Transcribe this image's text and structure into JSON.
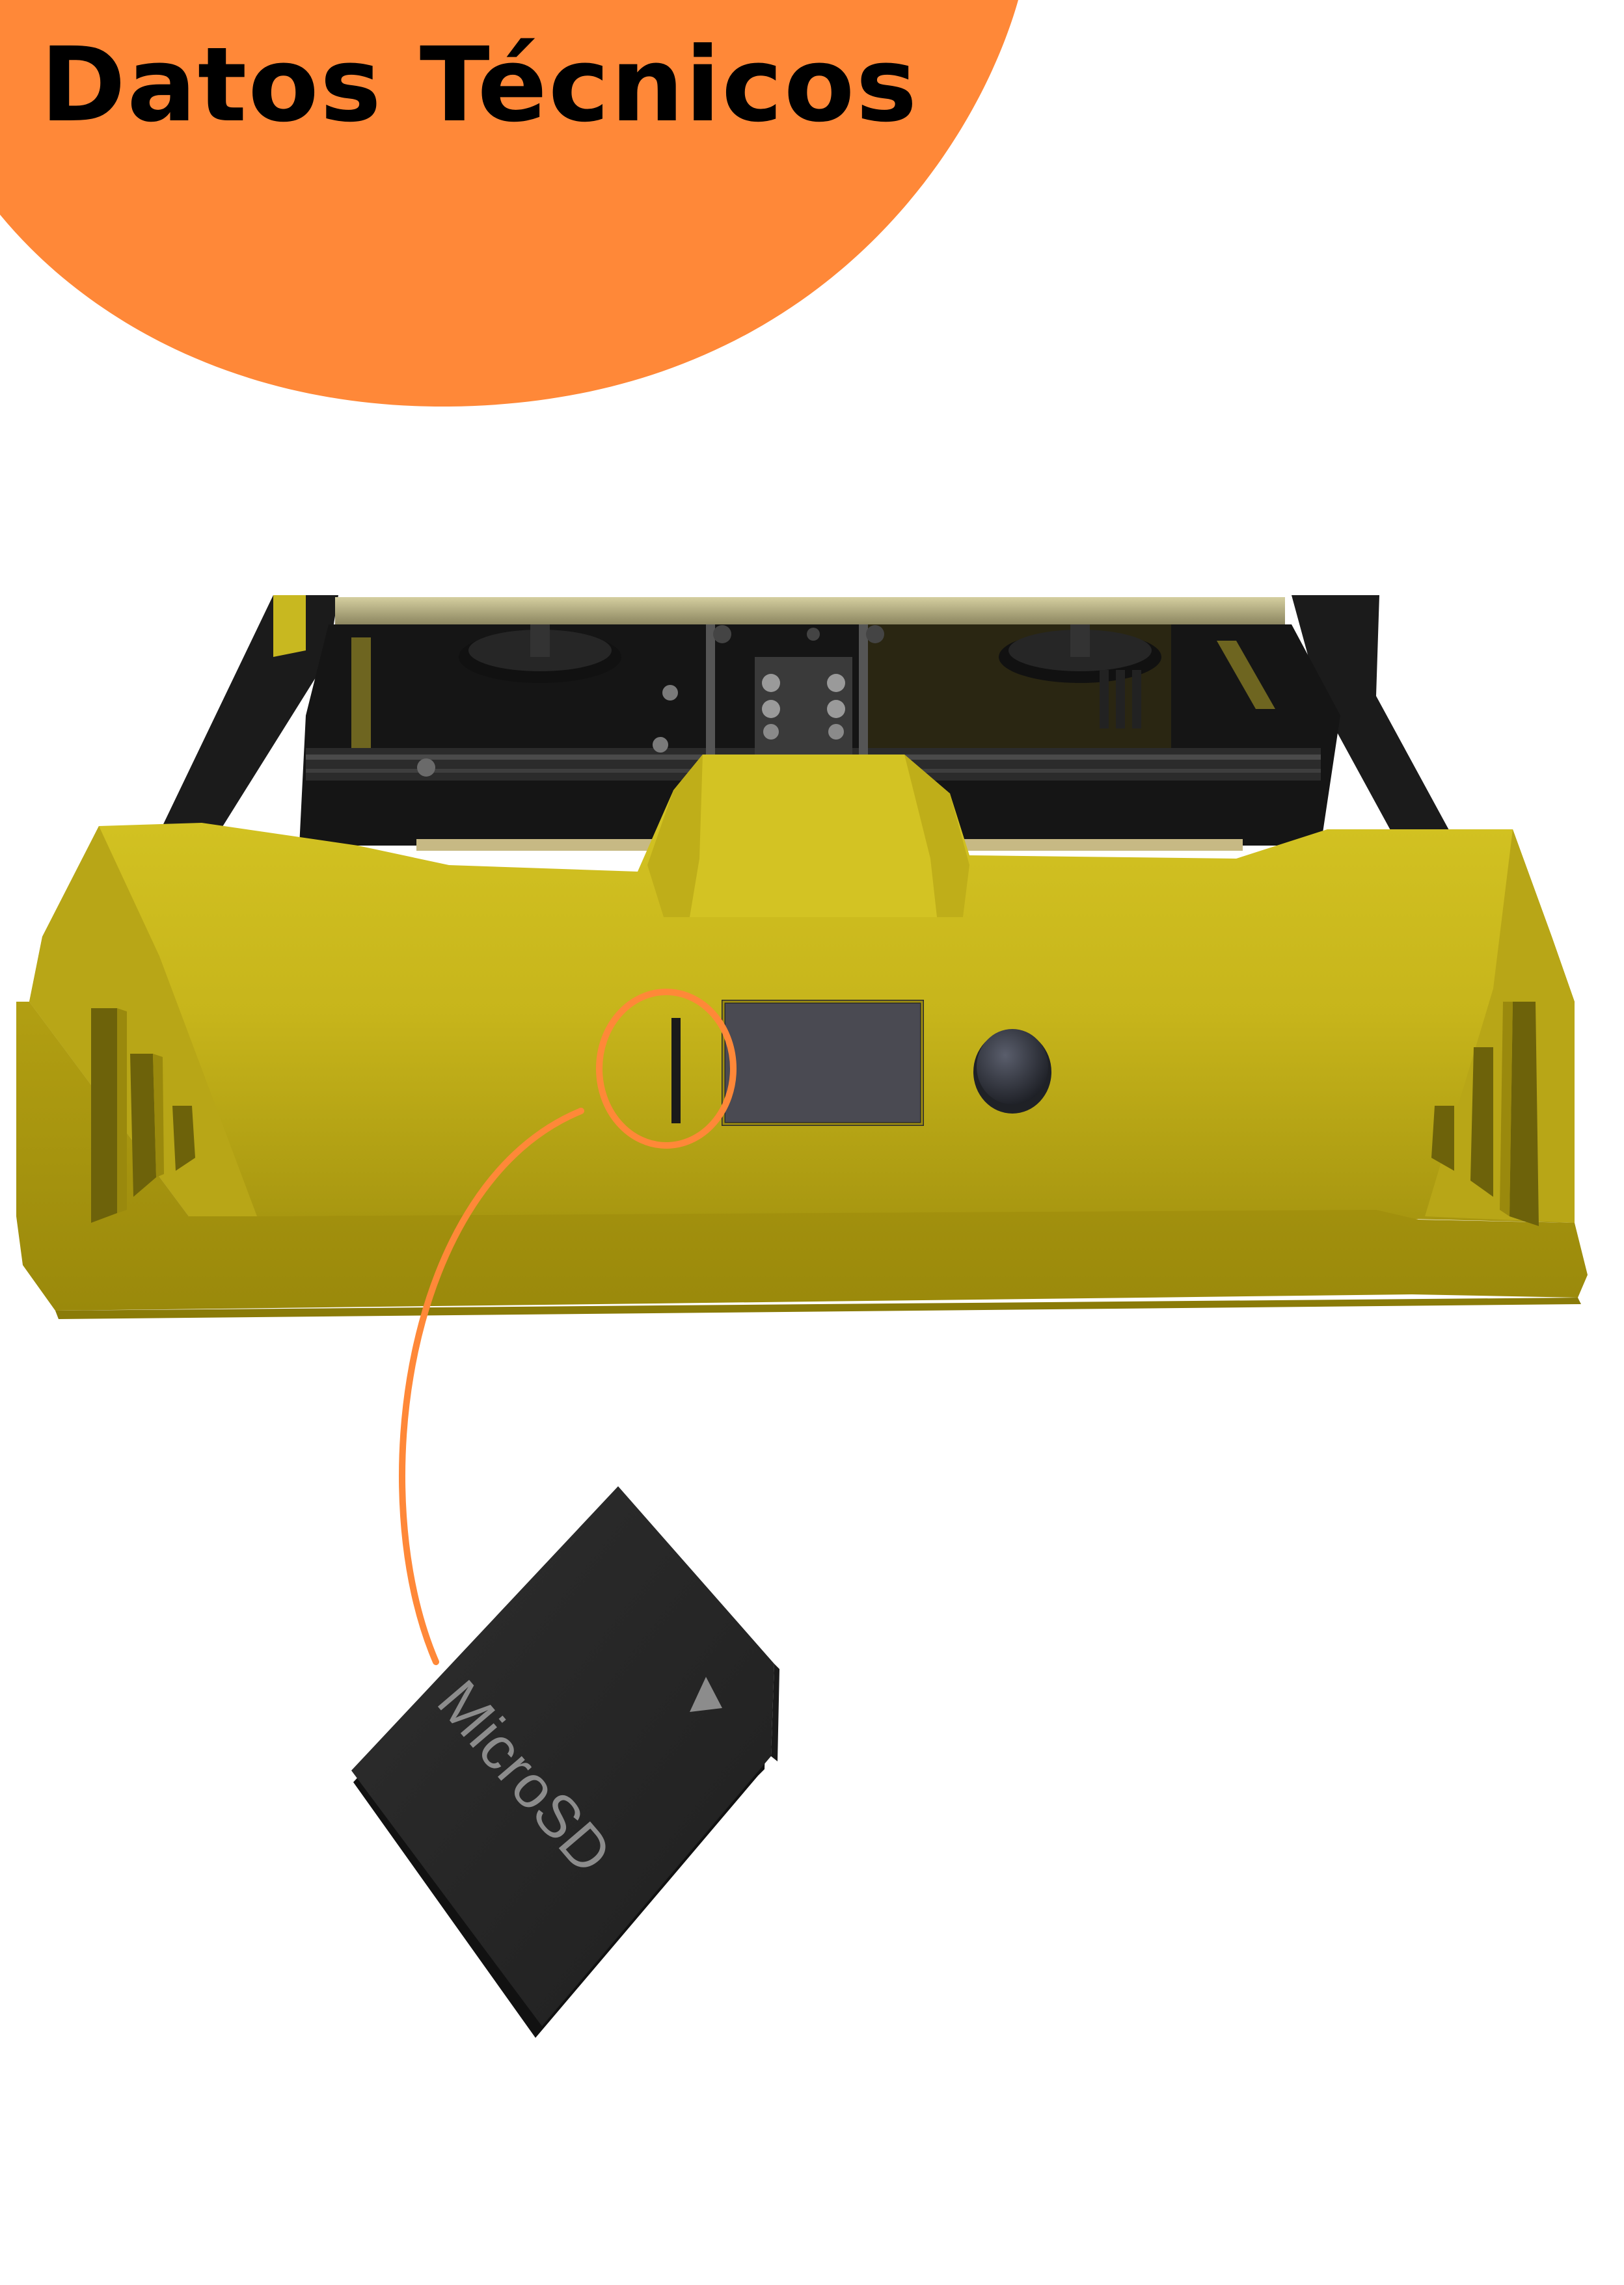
{
  "header": {
    "title": "Datos Técnicos"
  },
  "card": {
    "label": "MicroSD"
  },
  "colors": {
    "accent_orange": "#FF8838",
    "printer_yellow": "#D2C221",
    "printer_frame": "#1E1E1E",
    "display_screen": "#4A4A52",
    "card_body": "#262626",
    "card_text": "#8C8C8C"
  },
  "icons": {
    "insert_arrow": "triangle-up-icon",
    "control_knob": "rotary-knob-icon"
  }
}
